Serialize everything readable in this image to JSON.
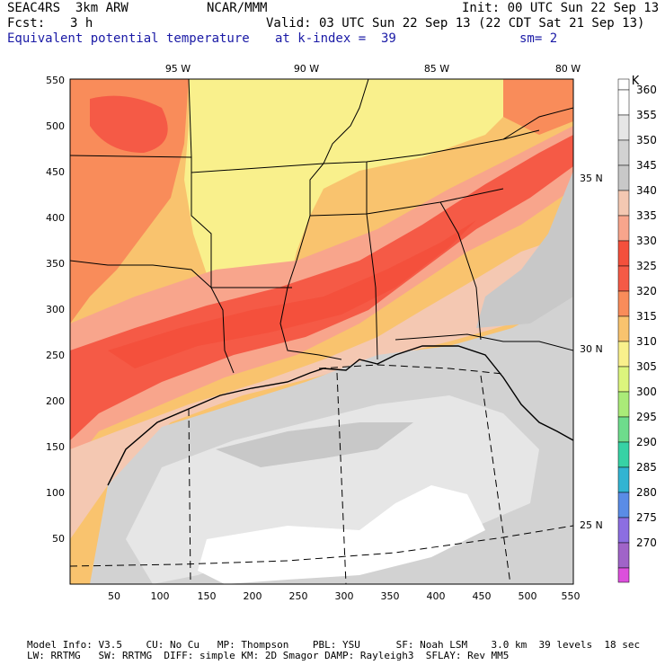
{
  "header": {
    "model": "SEAC4RS  3km ARW",
    "org": "NCAR/MMM",
    "init": "Init: 00 UTC Sun 22 Sep 13",
    "fcst_label": "Fcst:",
    "fcst_value": "3 h",
    "valid": "Valid: 03 UTC Sun 22 Sep 13 (22 CDT Sat 21 Sep 13)",
    "field": "Equivalent potential temperature",
    "level": "at k-index =  39",
    "smoothing": "sm= 2"
  },
  "map": {
    "lon_labels": [
      "95 W",
      "90 W",
      "85 W",
      "80 W"
    ],
    "lat_labels": [
      "35 N",
      "30 N",
      "25 N"
    ],
    "x_ticks": [
      "50",
      "100",
      "150",
      "200",
      "250",
      "300",
      "350",
      "400",
      "450",
      "500",
      "550"
    ],
    "y_ticks": [
      "550",
      "500",
      "450",
      "400",
      "350",
      "300",
      "250",
      "200",
      "150",
      "100",
      "50"
    ]
  },
  "colorbar": {
    "unit": "K",
    "levels": [
      "360",
      "355",
      "350",
      "345",
      "340",
      "335",
      "330",
      "325",
      "320",
      "315",
      "310",
      "305",
      "300",
      "295",
      "290",
      "285",
      "280",
      "275",
      "270"
    ],
    "colors": {
      "360": "#ffffff",
      "355": "#e6e6e6",
      "350": "#d2d2d2",
      "345": "#c8c8c8",
      "340": "#f4c8b2",
      "335": "#f8a58c",
      "330": "#f4503c",
      "325": "#f55a46",
      "320": "#f98c5a",
      "315": "#f9c36e",
      "310": "#f9f08c",
      "305": "#dcf57d",
      "300": "#aaeb78",
      "295": "#6edc8c",
      "290": "#37d2a5",
      "285": "#32b4d2",
      "280": "#5a8ce6",
      "275": "#8c6ee1",
      "270": "#a064c8",
      "bottom": "#dc50dc"
    }
  },
  "footer": {
    "line1": "Model Info: V3.5    CU: No Cu   MP: Thompson    PBL: YSU      SF: Noah LSM    3.0 km  39 levels  18 sec",
    "line2": "LW: RRTMG   SW: RRTMG  DIFF: simple KM: 2D Smagor DAMP: Rayleigh3  SFLAY: Rev MM5"
  }
}
